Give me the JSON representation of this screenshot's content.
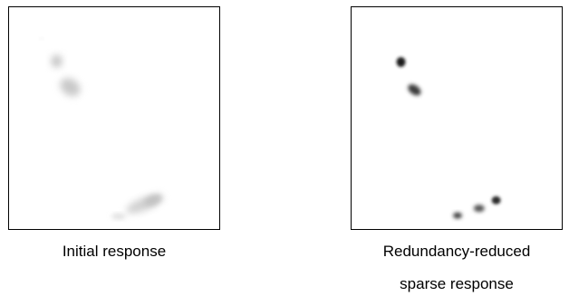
{
  "panels": {
    "left": {
      "caption": "Initial response"
    },
    "right": {
      "caption_line1": "Redundancy-reduced",
      "caption_line2": "sparse response"
    }
  },
  "colors": {
    "frame": "#000000",
    "background": "#ffffff",
    "initial_blob": "#9a9a9a",
    "sparse_blob": "#202020"
  }
}
